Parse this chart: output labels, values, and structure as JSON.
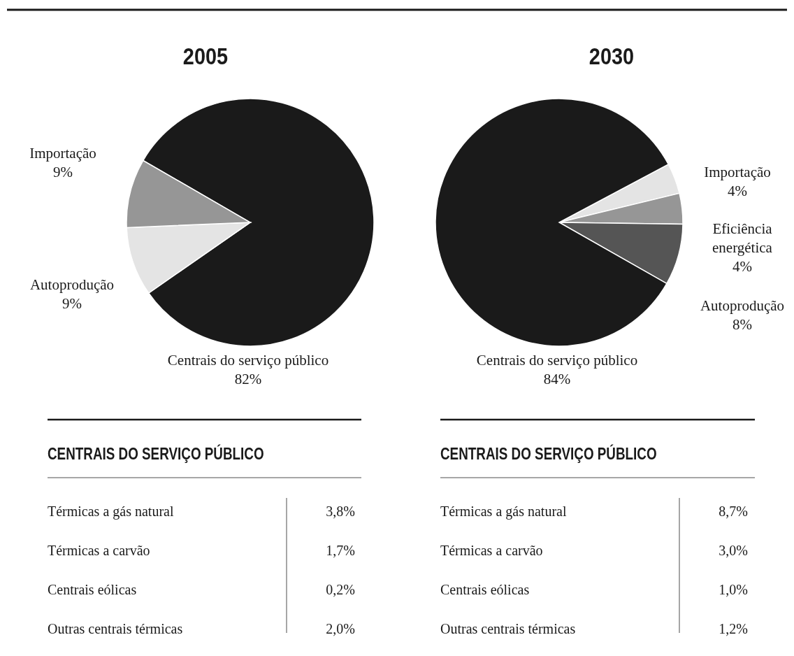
{
  "chart_data": [
    {
      "type": "pie",
      "title": "2005",
      "categories": [
        "Centrais do serviço público",
        "Autoprodução",
        "Importação"
      ],
      "values": [
        82,
        9,
        9
      ],
      "value_labels": [
        "82%",
        "9%",
        "9%"
      ],
      "colors": [
        "#1a1a1a",
        "#e4e4e4",
        "#969696"
      ]
    },
    {
      "type": "pie",
      "title": "2030",
      "categories": [
        "Importação",
        "Eficiência energética",
        "Autoprodução",
        "Centrais do serviço público"
      ],
      "values": [
        4,
        4,
        8,
        84
      ],
      "value_labels": [
        "4%",
        "4%",
        "8%",
        "84%"
      ],
      "colors": [
        "#e4e4e4",
        "#969696",
        "#555555",
        "#1a1a1a"
      ]
    },
    {
      "type": "other",
      "title": "CENTRAIS DO SERVIÇO PÚBLICO",
      "categories": [
        "Térmicas a gás natural",
        "Térmicas a carvão",
        "Centrais eólicas",
        "Outras centrais térmicas"
      ],
      "values": [
        3.8,
        1.7,
        0.2,
        2.0
      ],
      "value_labels": [
        "3,8%",
        "1,7%",
        "0,2%",
        "2,0%"
      ]
    },
    {
      "type": "other",
      "title": "CENTRAIS DO SERVIÇO PÚBLICO",
      "categories": [
        "Térmicas a gás natural",
        "Térmicas a carvão",
        "Centrais eólicas",
        "Outras centrais térmicas"
      ],
      "values": [
        8.7,
        3.0,
        1.0,
        1.2
      ],
      "value_labels": [
        "8,7%",
        "3,0%",
        "1,0%",
        "1,2%"
      ]
    }
  ]
}
